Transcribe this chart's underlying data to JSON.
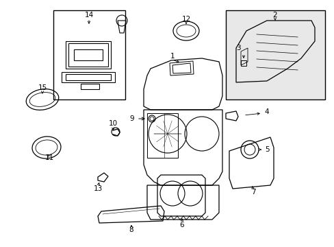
{
  "bg_color": "#ffffff",
  "line_color": "#000000",
  "box2_fill": "#e8e8e8",
  "figsize": [
    4.89,
    3.6
  ],
  "dpi": 100,
  "label_fontsize": 7.5
}
